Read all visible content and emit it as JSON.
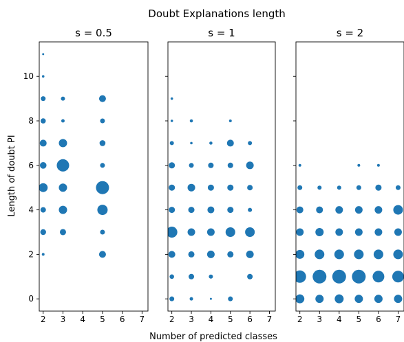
{
  "chart_data": {
    "type": "scatter",
    "suptitle": "Doubt Explanations length",
    "xlabel": "Number of predicted classes",
    "ylabel": "Length of doubt PI",
    "xlim": [
      1.8,
      7.3
    ],
    "ylim": [
      -0.55,
      11.55
    ],
    "xticks": [
      2,
      3,
      4,
      5,
      6,
      7
    ],
    "yticks": [
      0,
      2,
      4,
      6,
      8,
      10
    ],
    "marker_color": "#1f77b4",
    "size_unit": "marker radius (relative)",
    "panels": [
      {
        "title": "s = 0.5",
        "points": [
          {
            "x": 2,
            "y": 11,
            "r": 1.5
          },
          {
            "x": 2,
            "y": 10,
            "r": 1.8
          },
          {
            "x": 2,
            "y": 9,
            "r": 3.5
          },
          {
            "x": 2,
            "y": 8,
            "r": 3.8
          },
          {
            "x": 2,
            "y": 7,
            "r": 5
          },
          {
            "x": 2,
            "y": 6,
            "r": 4.8
          },
          {
            "x": 2,
            "y": 5,
            "r": 6.5
          },
          {
            "x": 2,
            "y": 4,
            "r": 4
          },
          {
            "x": 2,
            "y": 3,
            "r": 4.2
          },
          {
            "x": 2,
            "y": 2,
            "r": 2
          },
          {
            "x": 3,
            "y": 9,
            "r": 3
          },
          {
            "x": 3,
            "y": 8,
            "r": 2.5
          },
          {
            "x": 3,
            "y": 7,
            "r": 6
          },
          {
            "x": 3,
            "y": 6,
            "r": 9
          },
          {
            "x": 3,
            "y": 5,
            "r": 6
          },
          {
            "x": 3,
            "y": 4,
            "r": 6
          },
          {
            "x": 3,
            "y": 3,
            "r": 4.5
          },
          {
            "x": 5,
            "y": 9,
            "r": 5
          },
          {
            "x": 5,
            "y": 8,
            "r": 3.5
          },
          {
            "x": 5,
            "y": 7,
            "r": 4.3
          },
          {
            "x": 5,
            "y": 6,
            "r": 3.5
          },
          {
            "x": 5,
            "y": 5,
            "r": 9.5
          },
          {
            "x": 5,
            "y": 4,
            "r": 7.5
          },
          {
            "x": 5,
            "y": 3,
            "r": 3.5
          },
          {
            "x": 5,
            "y": 2,
            "r": 5
          }
        ]
      },
      {
        "title": "s = 1",
        "points": [
          {
            "x": 2,
            "y": 9,
            "r": 1.8
          },
          {
            "x": 2,
            "y": 8,
            "r": 1.8
          },
          {
            "x": 2,
            "y": 7,
            "r": 3
          },
          {
            "x": 2,
            "y": 6,
            "r": 4.5
          },
          {
            "x": 2,
            "y": 5,
            "r": 4.5
          },
          {
            "x": 2,
            "y": 4,
            "r": 4.5
          },
          {
            "x": 2,
            "y": 3,
            "r": 8
          },
          {
            "x": 2,
            "y": 2,
            "r": 5
          },
          {
            "x": 2,
            "y": 1,
            "r": 3.3
          },
          {
            "x": 2,
            "y": 0,
            "r": 3.5
          },
          {
            "x": 3,
            "y": 8,
            "r": 2.3
          },
          {
            "x": 3,
            "y": 7,
            "r": 1.8
          },
          {
            "x": 3,
            "y": 6,
            "r": 3.5
          },
          {
            "x": 3,
            "y": 5,
            "r": 5.5
          },
          {
            "x": 3,
            "y": 4,
            "r": 4.5
          },
          {
            "x": 3,
            "y": 3,
            "r": 5.5
          },
          {
            "x": 3,
            "y": 2,
            "r": 4.5
          },
          {
            "x": 3,
            "y": 1,
            "r": 4
          },
          {
            "x": 3,
            "y": 0,
            "r": 2.5
          },
          {
            "x": 4,
            "y": 7,
            "r": 2.3
          },
          {
            "x": 4,
            "y": 6,
            "r": 4
          },
          {
            "x": 4,
            "y": 5,
            "r": 4.5
          },
          {
            "x": 4,
            "y": 4,
            "r": 5
          },
          {
            "x": 4,
            "y": 3,
            "r": 5.5
          },
          {
            "x": 4,
            "y": 2,
            "r": 5.5
          },
          {
            "x": 4,
            "y": 1,
            "r": 3
          },
          {
            "x": 4,
            "y": 0,
            "r": 1.5
          },
          {
            "x": 5,
            "y": 8,
            "r": 2
          },
          {
            "x": 5,
            "y": 7,
            "r": 5
          },
          {
            "x": 5,
            "y": 6,
            "r": 4
          },
          {
            "x": 5,
            "y": 5,
            "r": 4.5
          },
          {
            "x": 5,
            "y": 4,
            "r": 4.5
          },
          {
            "x": 5,
            "y": 3,
            "r": 7
          },
          {
            "x": 5,
            "y": 2,
            "r": 4.5
          },
          {
            "x": 5,
            "y": 0,
            "r": 3.5
          },
          {
            "x": 6,
            "y": 7,
            "r": 3
          },
          {
            "x": 6,
            "y": 6,
            "r": 5.5
          },
          {
            "x": 6,
            "y": 5,
            "r": 4
          },
          {
            "x": 6,
            "y": 4,
            "r": 3
          },
          {
            "x": 6,
            "y": 3,
            "r": 7
          },
          {
            "x": 6,
            "y": 2,
            "r": 5.5
          },
          {
            "x": 6,
            "y": 1,
            "r": 4
          }
        ]
      },
      {
        "title": "s = 2",
        "points": [
          {
            "x": 2,
            "y": 6,
            "r": 2
          },
          {
            "x": 2,
            "y": 5,
            "r": 3.5
          },
          {
            "x": 2,
            "y": 4,
            "r": 5
          },
          {
            "x": 2,
            "y": 3,
            "r": 5.5
          },
          {
            "x": 2,
            "y": 2,
            "r": 6.5
          },
          {
            "x": 2,
            "y": 1,
            "r": 9
          },
          {
            "x": 2,
            "y": 0,
            "r": 6.5
          },
          {
            "x": 3,
            "y": 5,
            "r": 3
          },
          {
            "x": 3,
            "y": 4,
            "r": 5
          },
          {
            "x": 3,
            "y": 3,
            "r": 6
          },
          {
            "x": 3,
            "y": 2,
            "r": 7
          },
          {
            "x": 3,
            "y": 1,
            "r": 10
          },
          {
            "x": 3,
            "y": 0,
            "r": 6
          },
          {
            "x": 4,
            "y": 5,
            "r": 3
          },
          {
            "x": 4,
            "y": 4,
            "r": 5.5
          },
          {
            "x": 4,
            "y": 3,
            "r": 5.5
          },
          {
            "x": 4,
            "y": 2,
            "r": 7
          },
          {
            "x": 4,
            "y": 1,
            "r": 10
          },
          {
            "x": 4,
            "y": 0,
            "r": 6.5
          },
          {
            "x": 5,
            "y": 6,
            "r": 2
          },
          {
            "x": 5,
            "y": 5,
            "r": 3.5
          },
          {
            "x": 5,
            "y": 4,
            "r": 5.5
          },
          {
            "x": 5,
            "y": 3,
            "r": 5.5
          },
          {
            "x": 5,
            "y": 2,
            "r": 7
          },
          {
            "x": 5,
            "y": 1,
            "r": 10
          },
          {
            "x": 5,
            "y": 0,
            "r": 6
          },
          {
            "x": 6,
            "y": 6,
            "r": 2
          },
          {
            "x": 6,
            "y": 5,
            "r": 4.5
          },
          {
            "x": 6,
            "y": 4,
            "r": 5.5
          },
          {
            "x": 6,
            "y": 3,
            "r": 5.5
          },
          {
            "x": 6,
            "y": 2,
            "r": 7
          },
          {
            "x": 6,
            "y": 1,
            "r": 8.5
          },
          {
            "x": 6,
            "y": 0,
            "r": 6
          },
          {
            "x": 7,
            "y": 5,
            "r": 3.5
          },
          {
            "x": 7,
            "y": 4,
            "r": 7
          },
          {
            "x": 7,
            "y": 3,
            "r": 5.5
          },
          {
            "x": 7,
            "y": 2,
            "r": 7
          },
          {
            "x": 7,
            "y": 1,
            "r": 8.5
          },
          {
            "x": 7,
            "y": 0,
            "r": 6
          }
        ]
      }
    ]
  }
}
